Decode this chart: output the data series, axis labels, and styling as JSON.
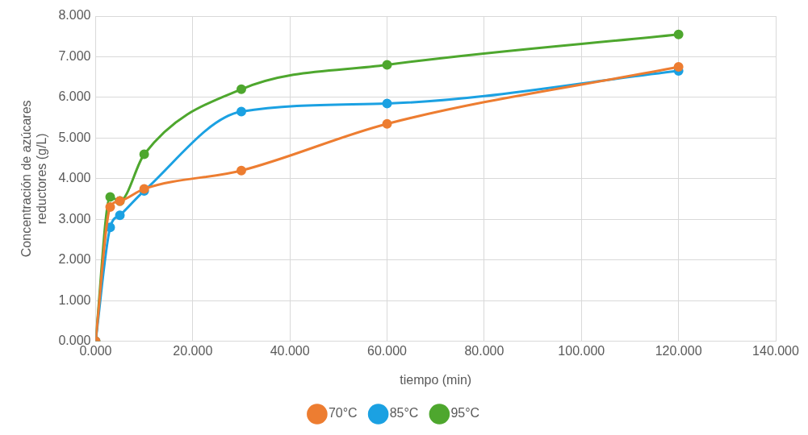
{
  "chart_data": {
    "type": "line",
    "xlabel": "tiempo (min)",
    "ylabel": "Concentración de azúcares reductores (g/L)",
    "x": [
      0,
      3,
      5,
      10,
      30,
      60,
      120
    ],
    "series": [
      {
        "name": "70°C",
        "color": "#ed7d31",
        "values": [
          0,
          3.3,
          3.45,
          3.75,
          4.2,
          5.35,
          6.75
        ]
      },
      {
        "name": "85°C",
        "color": "#1ba1e2",
        "values": [
          0,
          2.8,
          3.1,
          3.7,
          5.65,
          5.85,
          6.65
        ]
      },
      {
        "name": "95°C",
        "color": "#4ea72e",
        "values": [
          0,
          3.55,
          3.45,
          4.6,
          6.2,
          6.8,
          7.55
        ]
      }
    ],
    "xlim": [
      0,
      140
    ],
    "xticks": [
      {
        "value": 0,
        "label": "0.000"
      },
      {
        "value": 20,
        "label": "20.000"
      },
      {
        "value": 40,
        "label": "40.000"
      },
      {
        "value": 60,
        "label": "60.000"
      },
      {
        "value": 80,
        "label": "80.000"
      },
      {
        "value": 100,
        "label": "100.000"
      },
      {
        "value": 120,
        "label": "120.000"
      },
      {
        "value": 140,
        "label": "140.000"
      }
    ],
    "ylim": [
      0,
      8
    ],
    "yticks": [
      {
        "value": 0,
        "label": "0.000"
      },
      {
        "value": 1,
        "label": "1.000"
      },
      {
        "value": 2,
        "label": "2.000"
      },
      {
        "value": 3,
        "label": "3.000"
      },
      {
        "value": 4,
        "label": "4.000"
      },
      {
        "value": 5,
        "label": "5.000"
      },
      {
        "value": 6,
        "label": "6.000"
      },
      {
        "value": 7,
        "label": "7.000"
      },
      {
        "value": 8,
        "label": "8.000"
      }
    ],
    "grid": true,
    "legend": "bottom",
    "marker": "circle"
  }
}
